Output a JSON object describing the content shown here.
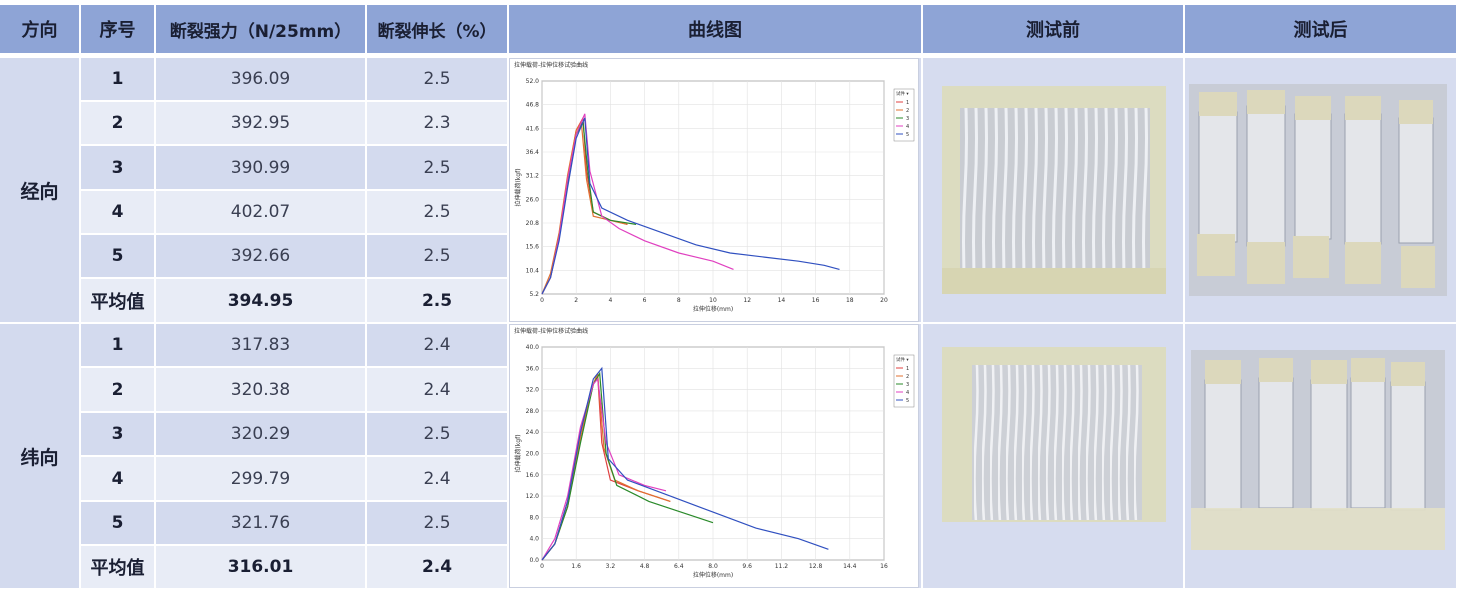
{
  "headers": {
    "direction": "方向",
    "index": "序号",
    "strength": "断裂强力（N/25mm）",
    "elongation": "断裂伸长（%）",
    "curve": "曲线图",
    "before": "测试前",
    "after": "测试后"
  },
  "warp": {
    "label": "经向",
    "rows": [
      {
        "no": "1",
        "strength": "396.09",
        "elong": "2.5"
      },
      {
        "no": "2",
        "strength": "392.95",
        "elong": "2.3"
      },
      {
        "no": "3",
        "strength": "390.99",
        "elong": "2.5"
      },
      {
        "no": "4",
        "strength": "402.07",
        "elong": "2.5"
      },
      {
        "no": "5",
        "strength": "392.66",
        "elong": "2.5"
      }
    ],
    "avg": {
      "label": "平均值",
      "strength": "394.95",
      "elong": "2.5"
    }
  },
  "weft": {
    "label": "纬向",
    "rows": [
      {
        "no": "1",
        "strength": "317.83",
        "elong": "2.4"
      },
      {
        "no": "2",
        "strength": "320.38",
        "elong": "2.4"
      },
      {
        "no": "3",
        "strength": "320.29",
        "elong": "2.5"
      },
      {
        "no": "4",
        "strength": "299.79",
        "elong": "2.4"
      },
      {
        "no": "5",
        "strength": "321.76",
        "elong": "2.5"
      }
    ],
    "avg": {
      "label": "平均值",
      "strength": "316.01",
      "elong": "2.4"
    }
  },
  "chart_data": [
    {
      "type": "line",
      "title": "拉伸载荷-拉伸位移试验曲线",
      "xlabel": "拉伸位移(mm)",
      "ylabel": "拉伸载荷(kgf)",
      "xlim": [
        0,
        20
      ],
      "ylim": [
        0,
        52
      ],
      "xticks": [
        "0",
        "2",
        "4",
        "6",
        "8",
        "10",
        "12",
        "14",
        "16",
        "18",
        "20"
      ],
      "yticks": [
        "52.0",
        "46.8",
        "41.6",
        "36.4",
        "31.2",
        "26.0",
        "20.8",
        "15.6",
        "10.4",
        "5.2"
      ],
      "legend_title": "试件 ▾",
      "legend_position": "right",
      "series": [
        {
          "name": "1",
          "color": "#e04040",
          "x": [
            0,
            0.5,
            1.0,
            1.5,
            2.0,
            2.4,
            2.6,
            3.0,
            4.0,
            5.0
          ],
          "y": [
            0,
            4,
            14,
            28,
            40,
            43,
            30,
            20,
            18,
            17
          ]
        },
        {
          "name": "2",
          "color": "#e07030",
          "x": [
            0,
            0.5,
            1.0,
            1.5,
            2.0,
            2.3,
            2.6,
            3.0,
            4.0,
            5.0
          ],
          "y": [
            0,
            5,
            15,
            29,
            40,
            42,
            28,
            19,
            18,
            17
          ]
        },
        {
          "name": "3",
          "color": "#2a8a2a",
          "x": [
            0,
            0.5,
            1.0,
            1.5,
            2.0,
            2.4,
            2.7,
            3.0,
            4.0,
            5.5
          ],
          "y": [
            0,
            4,
            14,
            27,
            39,
            42,
            29,
            20,
            18,
            17
          ]
        },
        {
          "name": "4",
          "color": "#e040c0",
          "x": [
            0,
            0.5,
            1.0,
            1.5,
            2.0,
            2.5,
            2.8,
            3.5,
            4.5,
            6.0,
            8.0,
            10.0,
            11.2
          ],
          "y": [
            0,
            4,
            14,
            28,
            39,
            44,
            30,
            19,
            16,
            13,
            10,
            8,
            6
          ]
        },
        {
          "name": "5",
          "color": "#3050c0",
          "x": [
            0,
            0.5,
            1.0,
            1.5,
            2.0,
            2.5,
            2.8,
            3.5,
            5.0,
            7.0,
            9.0,
            11.0,
            13.0,
            15.0,
            16.5,
            17.4
          ],
          "y": [
            0,
            4,
            13,
            26,
            38,
            43,
            27,
            21,
            18,
            15,
            12,
            10,
            9,
            8,
            7,
            6
          ]
        }
      ]
    },
    {
      "type": "line",
      "title": "拉伸载荷-拉伸位移试验曲线",
      "xlabel": "拉伸位移(mm)",
      "ylabel": "拉伸载荷(kgf)",
      "xlim": [
        0,
        16
      ],
      "ylim": [
        0,
        40
      ],
      "xticks": [
        "0",
        "1.6",
        "3.2",
        "4.8",
        "6.4",
        "8.0",
        "9.6",
        "11.2",
        "12.8",
        "14.4",
        "16"
      ],
      "yticks": [
        "40.0",
        "36.0",
        "32.0",
        "28.0",
        "24.0",
        "20.0",
        "16.0",
        "12.0",
        "8.0",
        "4.0",
        "0.0"
      ],
      "legend_title": "试件 ▾",
      "legend_position": "right",
      "series": [
        {
          "name": "1",
          "color": "#e04040",
          "x": [
            0,
            0.6,
            1.2,
            1.8,
            2.4,
            2.6,
            2.8,
            3.2,
            4.5,
            6.0
          ],
          "y": [
            0,
            3,
            11,
            24,
            33,
            35,
            22,
            15,
            13,
            11
          ]
        },
        {
          "name": "2",
          "color": "#e07030",
          "x": [
            0,
            0.6,
            1.2,
            1.8,
            2.4,
            2.6,
            2.9,
            3.4,
            4.5,
            6.0
          ],
          "y": [
            0,
            3,
            10,
            23,
            33,
            35,
            21,
            15,
            13,
            11
          ]
        },
        {
          "name": "3",
          "color": "#2a8a2a",
          "x": [
            0,
            0.6,
            1.2,
            1.8,
            2.4,
            2.7,
            3.0,
            3.5,
            5.0,
            6.5,
            8.0
          ],
          "y": [
            0,
            3,
            10,
            22,
            33,
            35,
            20,
            14,
            11,
            9,
            7
          ]
        },
        {
          "name": "4",
          "color": "#e040c0",
          "x": [
            0,
            0.6,
            1.2,
            1.8,
            2.4,
            2.6,
            3.0,
            3.6,
            4.8,
            5.8
          ],
          "y": [
            0,
            4,
            12,
            25,
            33,
            34,
            22,
            16,
            14,
            13
          ]
        },
        {
          "name": "5",
          "color": "#3050c0",
          "x": [
            0,
            0.6,
            1.2,
            1.8,
            2.4,
            2.8,
            3.1,
            4.0,
            6.0,
            8.0,
            10.0,
            12.0,
            13.4
          ],
          "y": [
            0,
            3,
            11,
            24,
            34,
            36,
            19,
            15,
            12,
            9,
            6,
            4,
            2
          ]
        }
      ]
    }
  ]
}
